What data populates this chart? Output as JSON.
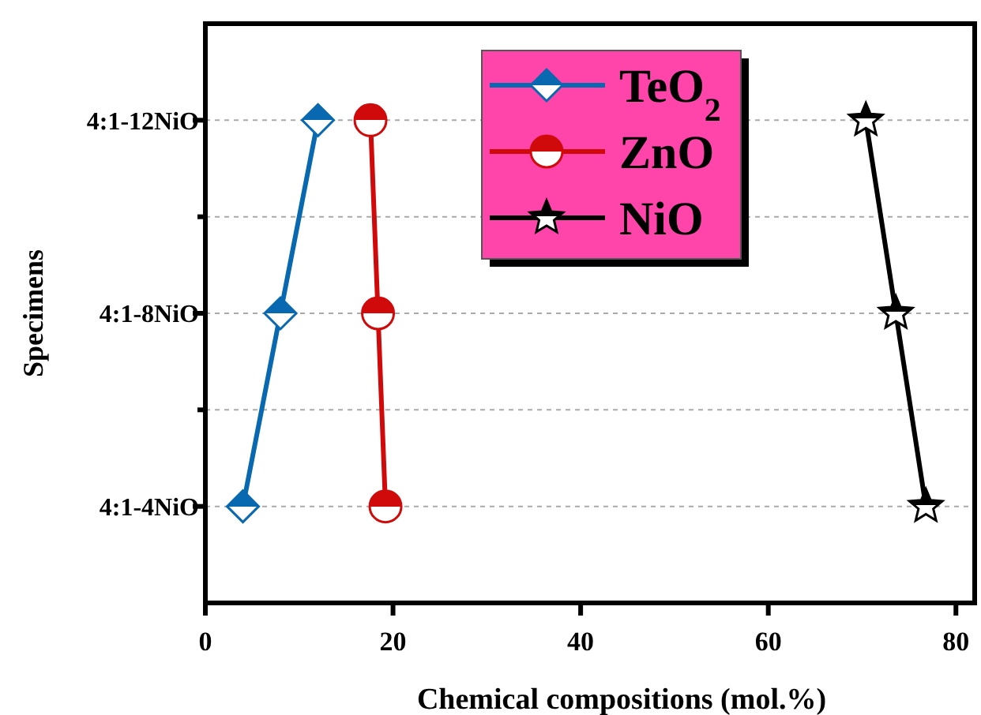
{
  "chart_data": {
    "type": "line",
    "orientation": "horizontal",
    "xlabel": "Chemical compositions (mol.%)",
    "ylabel": "Specimens",
    "categories": [
      "4:1-12NiO",
      "4:1-8NiO",
      "4:1-4NiO"
    ],
    "xlim": [
      0,
      82
    ],
    "xticks": [
      0,
      20,
      40,
      60,
      80
    ],
    "grid": "y",
    "legend": "top right",
    "series": [
      {
        "name": "TeO$_{2}$",
        "color": "#0868b0",
        "marker": "diamond",
        "values": [
          12,
          8,
          4
        ]
      },
      {
        "name": "ZnO",
        "color": "#d00a0a",
        "marker": "circle",
        "values": [
          17.6,
          18.4,
          19.2
        ]
      },
      {
        "name": "NiO",
        "color": "#000000",
        "marker": "star",
        "values": [
          70.4,
          73.6,
          76.8
        ]
      }
    ]
  }
}
